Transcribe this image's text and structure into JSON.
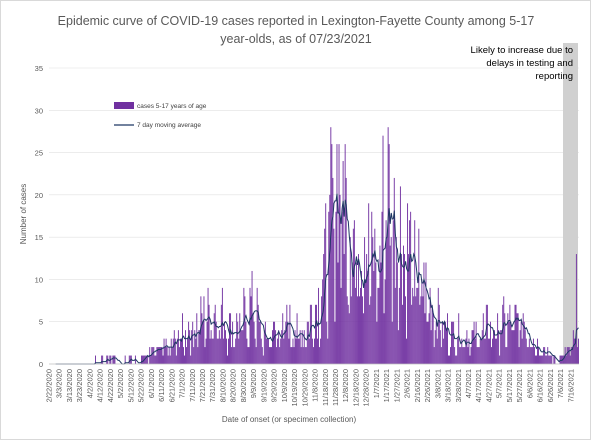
{
  "chart_data": {
    "type": "bar",
    "title_line1": "Epidemic curve of COVID-19 cases reported in Lexington-Fayette County among 5-17",
    "title_line2": "year-olds, as of 07/23/2021",
    "xlabel": "Date of onset (or specimen collection)",
    "ylabel": "Number of cases",
    "ylim": [
      0,
      35
    ],
    "yticks": [
      "0",
      "5",
      "10",
      "15",
      "20",
      "25",
      "30",
      "35"
    ],
    "xtick_labels": [
      "2/22/2020",
      "3/3/2020",
      "3/13/2020",
      "3/23/2020",
      "4/2/2020",
      "4/12/2020",
      "4/22/2020",
      "5/2/2020",
      "5/12/2020",
      "5/22/2020",
      "6/1/2020",
      "6/11/2020",
      "6/21/2020",
      "7/1/2020",
      "7/11/2020",
      "7/21/2020",
      "7/31/2020",
      "8/10/2020",
      "8/20/2020",
      "8/30/2020",
      "9/9/2020",
      "9/19/2020",
      "9/29/2020",
      "10/9/2020",
      "10/19/2020",
      "10/29/2020",
      "11/8/2020",
      "11/18/2020",
      "11/28/2020",
      "12/8/2020",
      "12/18/2020",
      "12/28/2020",
      "1/7/2021",
      "1/17/2021",
      "1/27/2021",
      "2/6/2021",
      "2/16/2021",
      "2/26/2021",
      "3/8/2021",
      "3/18/2021",
      "3/28/2021",
      "4/7/2021",
      "4/17/2021",
      "4/27/2021",
      "5/7/2021",
      "5/17/2021",
      "5/27/2021",
      "6/6/2021",
      "6/16/2021",
      "6/26/2021",
      "7/6/2021",
      "7/16/2021"
    ],
    "legend": {
      "bars_label": "cases 5-17 years of age",
      "line_label": "7 day moving average"
    },
    "annotation": {
      "line1": "Likely to increase due to",
      "line2": "delays in testing and",
      "line3": "reporting"
    },
    "colors": {
      "bars": "#7030a0",
      "line": "#1f3864",
      "shade": "#d0d0d0",
      "grid": "#e0e0e0",
      "text": "#595959"
    },
    "smooth_series": [
      0,
      0,
      0,
      0,
      0,
      0,
      0,
      0,
      0,
      0.2,
      0.2,
      0.2,
      0.2,
      0.4,
      0.5,
      0.5,
      0.5,
      0.6,
      0.8,
      1.2,
      1.6,
      1.7,
      2.1,
      2.2,
      2.6,
      3.2,
      3.6,
      4.4,
      4.7,
      5.3,
      5.4,
      6.0,
      6.6,
      6.0,
      5.1,
      4.4,
      4.6,
      4.8,
      5.6,
      7.3,
      5.9,
      4.0,
      3.0,
      3.9,
      4.0,
      4.3,
      4.9,
      4.7,
      4.1,
      3.8,
      4.8,
      5.8,
      7.4,
      10.6,
      12.8,
      19.5,
      22.5,
      21.1,
      17.7,
      15.7,
      14.7,
      17.9,
      13.6,
      12.5,
      12.2,
      18.4,
      21.1,
      17.0,
      16.1,
      13.5,
      13.7,
      11.0,
      10.4,
      8.6,
      7.3,
      6.4,
      5.6,
      4.2,
      3.6,
      3.8,
      3.8,
      3.6,
      2.9,
      3.4,
      4.2,
      4.7,
      4.4,
      4.3,
      5.2,
      4.8,
      5.0,
      5.0,
      5.6,
      4.4,
      3.8,
      2.6,
      2.0,
      1.2,
      0.7,
      0.7,
      1.1,
      1.6,
      2.7,
      8.3,
      8.4,
      4.0
    ]
  }
}
